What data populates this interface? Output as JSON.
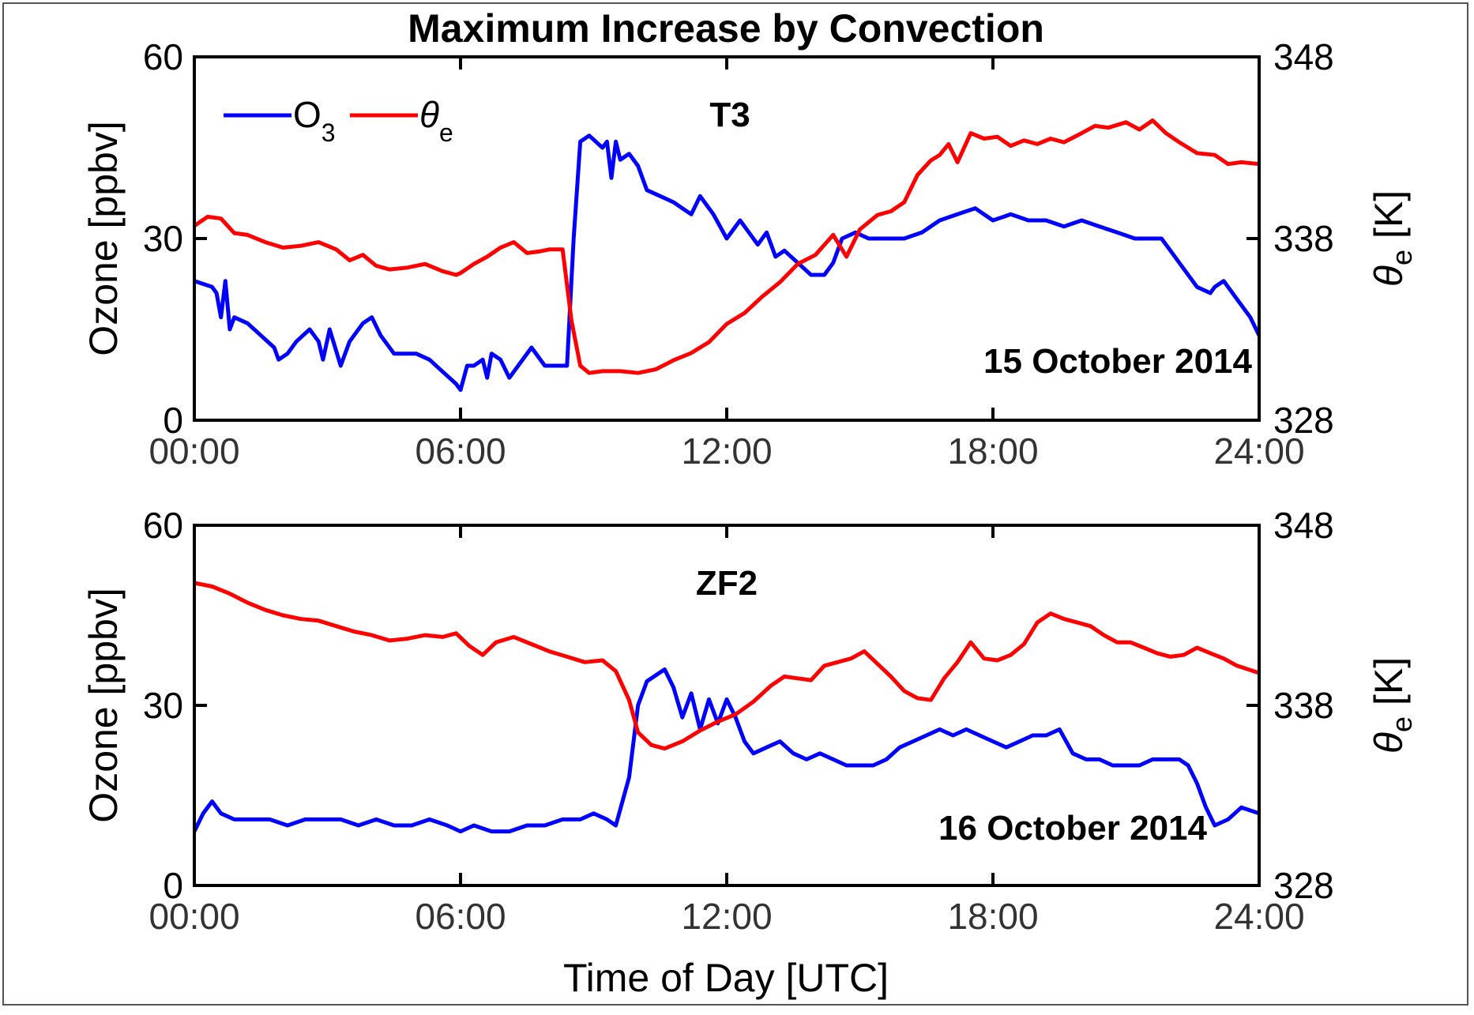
{
  "chart_data": [
    {
      "type": "line",
      "title": "Maximum Increase by Convection",
      "panel_label": "T3",
      "date_label": "15 October 2014",
      "xlabel": "",
      "ylabel": "Ozone [ppbv]",
      "y2label_symbol": "θ",
      "y2label_sub": "e",
      "y2label_unit": " [K]",
      "xlim": [
        0,
        24
      ],
      "ylim": [
        0,
        60
      ],
      "y2lim": [
        328,
        348
      ],
      "xticklabels": [
        "00:00",
        "06:00",
        "12:00",
        "18:00",
        "24:00"
      ],
      "xticks": [
        0,
        6,
        12,
        18,
        24
      ],
      "yticklabels": [
        "0",
        "30",
        "60"
      ],
      "yticks": [
        0,
        30,
        60
      ],
      "y2ticklabels": [
        "328",
        "338",
        "348"
      ],
      "y2ticks": [
        328,
        338,
        348
      ],
      "legend": {
        "placement": "top-left",
        "entries": [
          {
            "symbol": "O",
            "sub": "3",
            "color": "#0000ff"
          },
          {
            "symbol": "θ",
            "sub": "e",
            "color": "#ff0000"
          }
        ]
      },
      "series": [
        {
          "name": "O3",
          "axis": "left",
          "color": "#0000ff",
          "x": [
            0.0,
            0.4,
            0.5,
            0.6,
            0.7,
            0.8,
            0.9,
            1.2,
            1.5,
            1.8,
            1.9,
            2.1,
            2.3,
            2.6,
            2.8,
            2.9,
            3.05,
            3.3,
            3.5,
            3.8,
            4.0,
            4.2,
            4.5,
            4.7,
            5.0,
            5.3,
            5.6,
            5.9,
            6.0,
            6.15,
            6.3,
            6.5,
            6.6,
            6.7,
            6.9,
            7.1,
            7.3,
            7.6,
            7.9,
            8.2,
            8.4,
            8.55,
            8.7,
            8.9,
            9.2,
            9.3,
            9.4,
            9.5,
            9.6,
            9.8,
            10.0,
            10.2,
            10.5,
            10.8,
            11.0,
            11.2,
            11.4,
            11.7,
            12.0,
            12.3,
            12.5,
            12.7,
            12.9,
            13.1,
            13.3,
            13.6,
            13.9,
            14.2,
            14.4,
            14.6,
            14.9,
            15.2,
            15.6,
            16.0,
            16.4,
            16.8,
            17.2,
            17.6,
            18.0,
            18.4,
            18.8,
            19.2,
            19.6,
            20.0,
            20.4,
            20.8,
            21.2,
            21.5,
            21.8,
            22.0,
            22.3,
            22.6,
            22.9,
            23.0,
            23.2,
            23.5,
            23.8,
            24.0
          ],
          "y": [
            23,
            22,
            21,
            17,
            23,
            15,
            17,
            16,
            14,
            12,
            10,
            11,
            13,
            15,
            13,
            10,
            15,
            9,
            13,
            16,
            17,
            14,
            11,
            11,
            11,
            10,
            8,
            6,
            5,
            9,
            9,
            10,
            7,
            11,
            10,
            7,
            9,
            12,
            9,
            9,
            9,
            30,
            46,
            47,
            45,
            46,
            40,
            46,
            43,
            44,
            42,
            38,
            37,
            36,
            35,
            34,
            37,
            34,
            30,
            33,
            31,
            29,
            31,
            27,
            28,
            26,
            24,
            24,
            26,
            30,
            31,
            30,
            30,
            30,
            31,
            33,
            34,
            35,
            33,
            34,
            33,
            33,
            32,
            33,
            32,
            31,
            30,
            30,
            30,
            28,
            25,
            22,
            21,
            22,
            23,
            20,
            17,
            14
          ]
        },
        {
          "name": "θe",
          "axis": "right",
          "color": "#ff0000",
          "x": [
            0.0,
            0.3,
            0.6,
            0.9,
            1.2,
            1.6,
            2.0,
            2.4,
            2.8,
            3.2,
            3.5,
            3.8,
            4.1,
            4.4,
            4.8,
            5.2,
            5.6,
            5.9,
            6.0,
            6.3,
            6.6,
            6.9,
            7.2,
            7.5,
            7.8,
            8.0,
            8.3,
            8.5,
            8.7,
            8.9,
            9.2,
            9.6,
            10.0,
            10.4,
            10.8,
            11.2,
            11.6,
            12.0,
            12.4,
            12.8,
            13.2,
            13.6,
            14.0,
            14.4,
            14.7,
            15.0,
            15.4,
            15.7,
            16.0,
            16.3,
            16.6,
            16.8,
            17.0,
            17.2,
            17.5,
            17.8,
            18.1,
            18.4,
            18.7,
            19.0,
            19.3,
            19.6,
            20.0,
            20.3,
            20.6,
            21.0,
            21.3,
            21.6,
            21.9,
            22.2,
            22.6,
            23.0,
            23.3,
            23.6,
            24.0
          ],
          "y": [
            338.7,
            339.2,
            339.1,
            338.3,
            338.2,
            337.8,
            337.5,
            337.6,
            337.8,
            337.4,
            336.8,
            337.1,
            336.5,
            336.3,
            336.4,
            336.6,
            336.2,
            336.0,
            336.1,
            336.6,
            337.0,
            337.5,
            337.8,
            337.2,
            337.3,
            337.4,
            337.4,
            333.5,
            331.0,
            330.6,
            330.7,
            330.7,
            330.6,
            330.8,
            331.3,
            331.7,
            332.3,
            333.3,
            333.9,
            334.8,
            335.6,
            336.6,
            337.1,
            338.2,
            337.0,
            338.5,
            339.3,
            339.5,
            340.0,
            341.5,
            342.3,
            342.6,
            343.2,
            342.2,
            343.8,
            343.5,
            343.6,
            343.1,
            343.4,
            343.2,
            343.5,
            343.3,
            343.8,
            344.2,
            344.1,
            344.4,
            344.0,
            344.5,
            343.8,
            343.3,
            342.7,
            342.6,
            342.1,
            342.2,
            342.1
          ]
        }
      ]
    },
    {
      "type": "line",
      "panel_label": "ZF2",
      "date_label": "16 October 2014",
      "xlabel": "Time of Day [UTC]",
      "ylabel": "Ozone [ppbv]",
      "y2label_symbol": "θ",
      "y2label_sub": "e",
      "y2label_unit": " [K]",
      "xlim": [
        0,
        24
      ],
      "ylim": [
        0,
        60
      ],
      "y2lim": [
        328,
        348
      ],
      "xticklabels": [
        "00:00",
        "06:00",
        "12:00",
        "18:00",
        "24:00"
      ],
      "xticks": [
        0,
        6,
        12,
        18,
        24
      ],
      "yticklabels": [
        "0",
        "30",
        "60"
      ],
      "yticks": [
        0,
        30,
        60
      ],
      "y2ticklabels": [
        "328",
        "338",
        "348"
      ],
      "y2ticks": [
        328,
        338,
        348
      ],
      "series": [
        {
          "name": "O3",
          "axis": "left",
          "color": "#0000ff",
          "x": [
            0.0,
            0.2,
            0.4,
            0.6,
            0.9,
            1.3,
            1.7,
            2.1,
            2.5,
            2.9,
            3.3,
            3.7,
            4.1,
            4.5,
            4.9,
            5.3,
            5.7,
            6.0,
            6.3,
            6.7,
            7.1,
            7.5,
            7.9,
            8.3,
            8.7,
            9.0,
            9.3,
            9.5,
            9.8,
            10.0,
            10.2,
            10.4,
            10.6,
            10.8,
            11.0,
            11.2,
            11.4,
            11.6,
            11.8,
            12.0,
            12.2,
            12.4,
            12.6,
            12.9,
            13.2,
            13.5,
            13.8,
            14.1,
            14.4,
            14.7,
            15.0,
            15.3,
            15.6,
            15.9,
            16.2,
            16.5,
            16.8,
            17.1,
            17.4,
            17.7,
            18.0,
            18.3,
            18.6,
            18.9,
            19.2,
            19.5,
            19.8,
            20.1,
            20.4,
            20.7,
            21.0,
            21.3,
            21.6,
            21.9,
            22.2,
            22.4,
            22.6,
            22.8,
            23.0,
            23.3,
            23.6,
            24.0
          ],
          "y": [
            9,
            12,
            14,
            12,
            11,
            11,
            11,
            10,
            11,
            11,
            11,
            10,
            11,
            10,
            10,
            11,
            10,
            9,
            10,
            9,
            9,
            10,
            10,
            11,
            11,
            12,
            11,
            10,
            18,
            30,
            34,
            35,
            36,
            33,
            28,
            32,
            26,
            31,
            27,
            31,
            28,
            24,
            22,
            23,
            24,
            22,
            21,
            22,
            21,
            20,
            20,
            20,
            21,
            23,
            24,
            25,
            26,
            25,
            26,
            25,
            24,
            23,
            24,
            25,
            25,
            26,
            22,
            21,
            21,
            20,
            20,
            20,
            21,
            21,
            21,
            20,
            17,
            13,
            10,
            11,
            13,
            12
          ]
        },
        {
          "name": "θe",
          "axis": "right",
          "color": "#ff0000",
          "x": [
            0.0,
            0.4,
            0.8,
            1.2,
            1.6,
            2.0,
            2.4,
            2.8,
            3.2,
            3.6,
            4.0,
            4.4,
            4.8,
            5.2,
            5.6,
            5.9,
            6.2,
            6.5,
            6.8,
            7.2,
            7.6,
            8.0,
            8.4,
            8.8,
            9.2,
            9.5,
            9.8,
            10.0,
            10.3,
            10.6,
            11.0,
            11.4,
            11.8,
            12.2,
            12.6,
            13.0,
            13.3,
            13.6,
            13.9,
            14.2,
            14.5,
            14.8,
            15.1,
            15.4,
            15.7,
            16.0,
            16.3,
            16.6,
            16.9,
            17.2,
            17.5,
            17.8,
            18.1,
            18.4,
            18.7,
            19.0,
            19.3,
            19.6,
            19.9,
            20.2,
            20.5,
            20.8,
            21.1,
            21.4,
            21.7,
            22.0,
            22.3,
            22.6,
            22.9,
            23.2,
            23.5,
            24.0
          ],
          "y": [
            344.8,
            344.6,
            344.2,
            343.7,
            343.3,
            343.0,
            342.8,
            342.7,
            342.4,
            342.1,
            341.9,
            341.6,
            341.7,
            341.9,
            341.8,
            342.0,
            341.3,
            340.8,
            341.5,
            341.8,
            341.4,
            341.0,
            340.7,
            340.4,
            340.5,
            339.9,
            338.3,
            336.5,
            335.8,
            335.6,
            336.0,
            336.6,
            337.1,
            337.5,
            338.2,
            339.1,
            339.6,
            339.5,
            339.4,
            340.2,
            340.4,
            340.6,
            341.0,
            340.3,
            339.6,
            338.8,
            338.4,
            338.3,
            339.5,
            340.4,
            341.5,
            340.6,
            340.5,
            340.8,
            341.4,
            342.6,
            343.1,
            342.8,
            342.6,
            342.4,
            341.9,
            341.5,
            341.5,
            341.2,
            340.9,
            340.7,
            340.8,
            341.2,
            340.9,
            340.6,
            340.2,
            339.8
          ]
        }
      ]
    }
  ]
}
